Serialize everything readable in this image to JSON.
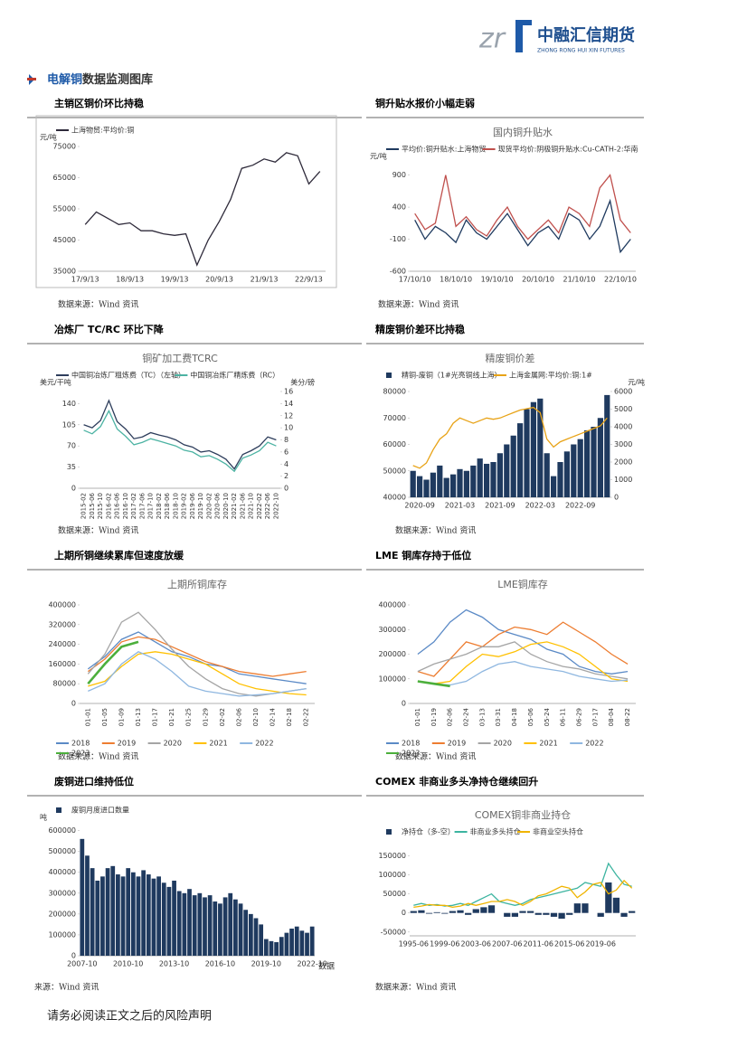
{
  "header": {
    "logo": "中融汇信期货",
    "logo_en": "ZHONG RONG HUI XIN FUTURES"
  },
  "section": {
    "highlight": "电解铜",
    "rest": "数据监测图库"
  },
  "chart_data": [
    {
      "type": "line",
      "heading": "主销区铜价环比持稳",
      "source": "数据来源：Wind 资讯",
      "ylabel": "元/吨",
      "legend": "top",
      "categories": [
        "17/9/13",
        null,
        null,
        null,
        "18/9/13",
        null,
        null,
        null,
        "19/9/13",
        null,
        null,
        null,
        "20/9/13",
        null,
        null,
        null,
        "21/9/13",
        null,
        null,
        null,
        "22/9/13",
        null
      ],
      "series": [
        {
          "name": "上海物贸:平均价:铜",
          "color": "#2e2a3a",
          "values": [
            50000,
            54000,
            52000,
            50000,
            50500,
            48000,
            48000,
            47000,
            46500,
            47000,
            37000,
            45000,
            51000,
            58000,
            68000,
            69000,
            71000,
            70000,
            73000,
            72000,
            63000,
            67000
          ]
        }
      ],
      "ylim": [
        35000,
        75000
      ],
      "yticks": [
        35000,
        45000,
        55000,
        65000,
        75000
      ],
      "grid": false
    },
    {
      "type": "line",
      "heading": "铜升贴水报价小幅走弱",
      "title": "国内铜升贴水",
      "source": "数据来源：Wind 资讯",
      "ylabel": "元/吨",
      "legend": "top",
      "categories": [
        "17/10/10",
        null,
        null,
        null,
        "18/10/10",
        null,
        null,
        null,
        "19/10/10",
        null,
        null,
        null,
        "20/10/10",
        null,
        null,
        null,
        "21/10/10",
        null,
        null,
        null,
        "22/10/10",
        null
      ],
      "series": [
        {
          "name": "平均价:铜升贴水:上海物贸",
          "color": "#1f3a5f",
          "values": [
            200,
            -100,
            100,
            0,
            -150,
            200,
            0,
            -100,
            100,
            300,
            50,
            -200,
            0,
            100,
            -100,
            300,
            200,
            -100,
            100,
            500,
            -300,
            -100
          ]
        },
        {
          "name": "现货平均价:阴极铜升贴水:Cu-CATH-2:华南",
          "color": "#c0504d",
          "values": [
            300,
            50,
            150,
            900,
            100,
            250,
            50,
            -50,
            200,
            400,
            100,
            -100,
            50,
            200,
            0,
            400,
            300,
            100,
            700,
            900,
            200,
            0
          ]
        }
      ],
      "ylim": [
        -600,
        1050
      ],
      "yticks": [
        -600,
        -100,
        400,
        900
      ],
      "grid": false
    },
    {
      "type": "line",
      "heading": "冶炼厂 TC/RC 环比下降",
      "title": "铜矿加工费TCRC",
      "source": "数据来源：Wind 资讯",
      "ylabel": "美元/干吨",
      "y2label": "美分/磅",
      "legend": "top",
      "categories": [
        "2015-02",
        "2015-06",
        "2015-10",
        "2016-02",
        "2016-06",
        "2016-10",
        "2017-02",
        "2017-06",
        "2017-10",
        "2018-02",
        "2018-06",
        "2018-10",
        "2019-02",
        "2019-06",
        "2019-10",
        "2020-02",
        "2020-06",
        "2020-10",
        "2021-02",
        "2021-06",
        "2021-10",
        "2022-02",
        "2022-06",
        "2022-10"
      ],
      "series": [
        {
          "name": "中国铜冶炼厂粗炼费（TC）（左轴）",
          "color": "#2e3e5c",
          "values": [
            105,
            100,
            112,
            145,
            110,
            98,
            82,
            85,
            92,
            88,
            85,
            80,
            72,
            68,
            60,
            62,
            56,
            48,
            32,
            56,
            62,
            70,
            85,
            80
          ]
        },
        {
          "name": "中国铜冶炼厂精炼费（RC）",
          "color": "#4cb3a3",
          "axis": "y2",
          "values": [
            9.6,
            9.0,
            10.2,
            12.8,
            9.8,
            8.6,
            7.2,
            7.6,
            8.2,
            7.8,
            7.4,
            7.0,
            6.3,
            6.0,
            5.2,
            5.4,
            4.8,
            4.0,
            2.8,
            5.0,
            5.5,
            6.2,
            7.6,
            7.0
          ]
        }
      ],
      "ylim": [
        0,
        160
      ],
      "yticks": [
        0,
        35,
        70,
        105,
        140
      ],
      "y2lim": [
        0,
        16
      ],
      "y2ticks": [
        0,
        2,
        4,
        6,
        8,
        10,
        12,
        14,
        16
      ],
      "grid": false
    },
    {
      "type": "combo",
      "heading": "精废铜价差环比持稳",
      "title": "精废铜价差",
      "source": "数据来源：Wind 资讯",
      "y2label": "元/吨",
      "legend": "top",
      "categories": [
        null,
        "2020-09",
        null,
        null,
        null,
        null,
        null,
        "2021-03",
        null,
        null,
        null,
        null,
        null,
        "2021-09",
        null,
        null,
        null,
        null,
        null,
        "2022-03",
        null,
        null,
        null,
        null,
        null,
        "2022-09",
        null,
        null,
        null,
        null
      ],
      "series": [
        {
          "name": "精铜-废铜（1#光亮铜线上海）",
          "type": "bar",
          "axis": "y2",
          "color": "#1f3a5f",
          "values": [
            1500,
            1200,
            1000,
            1400,
            1800,
            1100,
            1300,
            1600,
            1500,
            1800,
            2200,
            1900,
            2000,
            2500,
            3000,
            3500,
            4200,
            5000,
            5400,
            5600,
            2500,
            1200,
            2000,
            2600,
            3000,
            3300,
            3800,
            4000,
            4500,
            5800
          ]
        },
        {
          "name": "上海金属网:平均价:铜:1#",
          "type": "line",
          "color": "#e8a317",
          "values": [
            52000,
            51000,
            53000,
            58000,
            62000,
            64000,
            68000,
            70000,
            69000,
            68000,
            69000,
            70000,
            69500,
            70000,
            71000,
            72000,
            73000,
            73500,
            74000,
            72000,
            62000,
            59000,
            61000,
            62000,
            63000,
            64000,
            65000,
            66000,
            67000,
            70000
          ]
        }
      ],
      "ylim": [
        40000,
        80000
      ],
      "yticks": [
        40000,
        50000,
        60000,
        70000,
        80000
      ],
      "y2lim": [
        0,
        6000
      ],
      "y2ticks": [
        0,
        1000,
        2000,
        3000,
        4000,
        5000,
        6000
      ],
      "grid": false
    },
    {
      "type": "line",
      "heading": "上期所铜继续累库但速度放缓",
      "title": "上期所铜库存",
      "source": "数据来源：Wind 资讯",
      "legend": "bottom",
      "categories": [
        "01-01",
        "01-05",
        "01-09",
        "01-13",
        "01-17",
        "01-21",
        "01-25",
        "01-29",
        "02-02",
        "02-06",
        "02-10",
        "02-14",
        "02-18",
        "02-22"
      ],
      "series": [
        {
          "name": "2018",
          "color": "#5b8ac6",
          "values": [
            140000,
            190000,
            260000,
            290000,
            250000,
            210000,
            190000,
            160000,
            150000,
            120000,
            110000,
            100000,
            90000,
            80000
          ]
        },
        {
          "name": "2019",
          "color": "#ed7d31",
          "values": [
            130000,
            180000,
            250000,
            270000,
            260000,
            230000,
            200000,
            170000,
            150000,
            130000,
            120000,
            110000,
            120000,
            130000
          ]
        },
        {
          "name": "2020",
          "color": "#a5a5a5",
          "values": [
            120000,
            200000,
            330000,
            370000,
            300000,
            220000,
            150000,
            100000,
            60000,
            40000,
            30000,
            40000,
            50000,
            60000
          ]
        },
        {
          "name": "2021",
          "color": "#ffc000",
          "values": [
            70000,
            90000,
            150000,
            200000,
            210000,
            200000,
            180000,
            160000,
            120000,
            80000,
            60000,
            50000,
            40000,
            35000
          ]
        },
        {
          "name": "2022",
          "color": "#8fb7e0",
          "values": [
            50000,
            80000,
            160000,
            210000,
            180000,
            130000,
            70000,
            50000,
            40000,
            30000,
            35000,
            40000,
            50000,
            60000
          ]
        },
        {
          "name": "2023",
          "color": "#4caf3c",
          "values": [
            80000,
            160000,
            230000,
            250000,
            null,
            null,
            null,
            null,
            null,
            null,
            null,
            null,
            null,
            null
          ]
        }
      ],
      "ylim": [
        0,
        400000
      ],
      "yticks": [
        0,
        80000,
        160000,
        240000,
        320000,
        400000
      ],
      "grid": false
    },
    {
      "type": "line",
      "heading": "LME 铜库存持于低位",
      "title": "LME铜库存",
      "source": "数据来源：Wind 资讯",
      "legend": "bottom",
      "categories": [
        "01-01",
        "01-19",
        "02-06",
        "02-24",
        "03-13",
        "03-31",
        "04-18",
        "05-06",
        "05-24",
        "06-11",
        "06-29",
        "07-17",
        "08-04",
        "08-22"
      ],
      "series": [
        {
          "name": "2018",
          "color": "#5b8ac6",
          "values": [
            200000,
            250000,
            330000,
            380000,
            350000,
            300000,
            280000,
            260000,
            220000,
            200000,
            150000,
            130000,
            120000,
            130000
          ]
        },
        {
          "name": "2019",
          "color": "#ed7d31",
          "values": [
            130000,
            110000,
            180000,
            250000,
            230000,
            280000,
            310000,
            300000,
            280000,
            330000,
            290000,
            250000,
            200000,
            160000
          ]
        },
        {
          "name": "2020",
          "color": "#a5a5a5",
          "values": [
            130000,
            160000,
            180000,
            200000,
            230000,
            230000,
            250000,
            200000,
            170000,
            150000,
            140000,
            120000,
            110000,
            100000
          ]
        },
        {
          "name": "2021",
          "color": "#ffc000",
          "values": [
            90000,
            80000,
            90000,
            150000,
            200000,
            190000,
            210000,
            240000,
            250000,
            230000,
            200000,
            150000,
            100000,
            90000
          ]
        },
        {
          "name": "2022",
          "color": "#8fb7e0",
          "values": [
            90000,
            80000,
            75000,
            90000,
            130000,
            160000,
            170000,
            150000,
            140000,
            130000,
            110000,
            100000,
            90000,
            95000
          ]
        },
        {
          "name": "2023",
          "color": "#4caf3c",
          "values": [
            90000,
            80000,
            70000,
            null,
            null,
            null,
            null,
            null,
            null,
            null,
            null,
            null,
            null,
            null
          ]
        }
      ],
      "ylim": [
        0,
        400000
      ],
      "yticks": [
        0,
        100000,
        200000,
        300000,
        400000
      ],
      "grid": false
    },
    {
      "type": "bar",
      "heading": "废铜进口维持低位",
      "source": "来源：Wind 资讯",
      "ylabel": "吨",
      "axis_note": "数据",
      "legend": "top",
      "categories": [
        "2007-10",
        null,
        null,
        null,
        null,
        null,
        null,
        null,
        null,
        "2010-10",
        null,
        null,
        null,
        null,
        null,
        null,
        null,
        null,
        "2013-10",
        null,
        null,
        null,
        null,
        null,
        null,
        null,
        null,
        "2016-10",
        null,
        null,
        null,
        null,
        null,
        null,
        null,
        null,
        "2019-10",
        null,
        null,
        null,
        null,
        null,
        null,
        null,
        null,
        "2022-10"
      ],
      "series": [
        {
          "name": "废铜月度进口数量",
          "color": "#1f3a5f",
          "values": [
            560000,
            480000,
            420000,
            360000,
            380000,
            420000,
            430000,
            390000,
            380000,
            420000,
            400000,
            380000,
            410000,
            390000,
            370000,
            380000,
            350000,
            330000,
            360000,
            310000,
            300000,
            320000,
            290000,
            300000,
            280000,
            290000,
            260000,
            250000,
            280000,
            300000,
            270000,
            250000,
            220000,
            200000,
            180000,
            150000,
            80000,
            70000,
            65000,
            90000,
            110000,
            130000,
            140000,
            120000,
            110000,
            140000
          ]
        }
      ],
      "ylim": [
        0,
        620000
      ],
      "yticks": [
        0,
        100000,
        200000,
        300000,
        400000,
        500000,
        600000
      ],
      "grid": false
    },
    {
      "type": "combo",
      "heading": "COMEX 非商业多头净持仓继续回升",
      "title": "COMEX铜非商业持仓",
      "source": "数据来源：Wind 资讯",
      "legend": "top",
      "categories": [
        "1995-06",
        null,
        null,
        null,
        "1999-06",
        null,
        null,
        null,
        "2003-06",
        null,
        null,
        null,
        "2007-06",
        null,
        null,
        null,
        "2011-06",
        null,
        null,
        null,
        "2015-06",
        null,
        null,
        null,
        "2019-06",
        null,
        null,
        null,
        null
      ],
      "series": [
        {
          "name": "净持仓（多-空）",
          "type": "bar",
          "color": "#1f3a5f",
          "values": [
            5000,
            7000,
            -2000,
            2000,
            -2000,
            5000,
            7000,
            -5000,
            10000,
            15000,
            20000,
            0,
            -10000,
            -10000,
            5000,
            5000,
            -5000,
            -5000,
            -10000,
            -15000,
            -5000,
            25000,
            25000,
            0,
            -10000,
            80000,
            40000,
            -10000,
            5000
          ]
        },
        {
          "name": "非商业多头持仓",
          "type": "line",
          "color": "#3cb4a0",
          "values": [
            20000,
            25000,
            20000,
            22000,
            18000,
            20000,
            25000,
            20000,
            30000,
            40000,
            50000,
            30000,
            25000,
            20000,
            25000,
            35000,
            40000,
            45000,
            50000,
            55000,
            60000,
            65000,
            80000,
            75000,
            70000,
            130000,
            100000,
            75000,
            70000
          ]
        },
        {
          "name": "非商业空头持仓",
          "type": "line",
          "color": "#f0b400",
          "values": [
            15000,
            18000,
            22000,
            20000,
            20000,
            15000,
            18000,
            25000,
            20000,
            25000,
            30000,
            30000,
            35000,
            30000,
            20000,
            30000,
            45000,
            50000,
            60000,
            70000,
            65000,
            40000,
            55000,
            75000,
            80000,
            50000,
            60000,
            85000,
            65000
          ]
        }
      ],
      "ylim": [
        -60000,
        170000
      ],
      "yticks": [
        -50000,
        0,
        50000,
        100000,
        150000
      ],
      "grid": false
    }
  ],
  "footer": "请务必阅读正文之后的风险声明"
}
